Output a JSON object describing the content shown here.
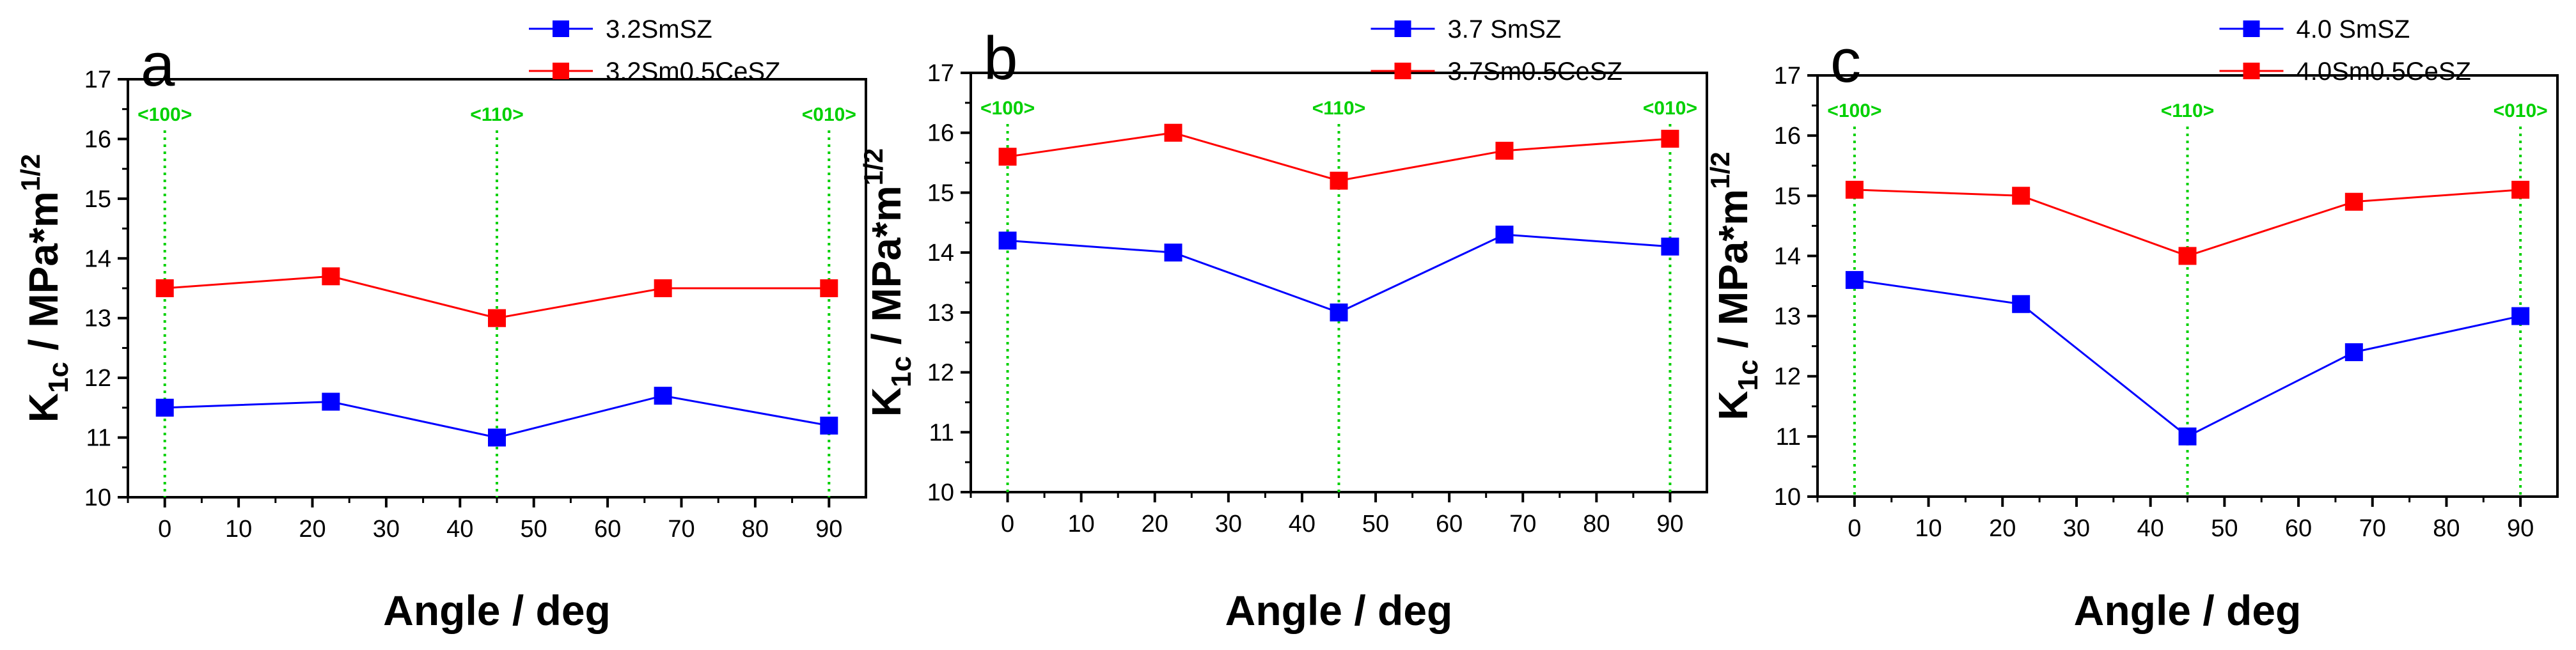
{
  "chart_data": [
    {
      "type": "line",
      "panel_label": "a",
      "x": [
        0,
        22.5,
        45,
        67.5,
        90
      ],
      "series": [
        {
          "name": "3.2SmSZ",
          "color": "#0000ff",
          "values": [
            11.5,
            11.6,
            11.0,
            11.7,
            11.2
          ]
        },
        {
          "name": "3.2Sm0.5CeSZ",
          "color": "#ff0000",
          "values": [
            13.5,
            13.7,
            13.0,
            13.5,
            13.5
          ]
        }
      ],
      "xlabel": "Angle / deg",
      "ylabel": {
        "main": "K",
        "sub": "1c",
        "mid": " / MPa*m",
        "sup": "1/2"
      },
      "xlim": [
        -5,
        95
      ],
      "ylim": [
        10,
        17
      ],
      "xticks": [
        0,
        10,
        20,
        30,
        40,
        50,
        60,
        70,
        80,
        90
      ],
      "yticks": [
        10,
        11,
        12,
        13,
        14,
        15,
        16,
        17
      ],
      "direction_lines": [
        {
          "x": 0,
          "label": "<100>"
        },
        {
          "x": 45,
          "label": "<110>"
        },
        {
          "x": 90,
          "label": "<010>"
        }
      ],
      "legend_position": "top-right"
    },
    {
      "type": "line",
      "panel_label": "b",
      "x": [
        0,
        22.5,
        45,
        67.5,
        90
      ],
      "series": [
        {
          "name": "3.7 SmSZ",
          "color": "#0000ff",
          "values": [
            14.2,
            14.0,
            13.0,
            14.3,
            14.1
          ]
        },
        {
          "name": "3.7Sm0.5CeSZ",
          "color": "#ff0000",
          "values": [
            15.6,
            16.0,
            15.2,
            15.7,
            15.9
          ]
        }
      ],
      "xlabel": "Angle / deg",
      "ylabel": {
        "main": "K",
        "sub": "1c",
        "mid": " / MPa*m",
        "sup": "1/2"
      },
      "xlim": [
        -5,
        95
      ],
      "ylim": [
        10,
        17
      ],
      "xticks": [
        0,
        10,
        20,
        30,
        40,
        50,
        60,
        70,
        80,
        90
      ],
      "yticks": [
        10,
        11,
        12,
        13,
        14,
        15,
        16,
        17
      ],
      "direction_lines": [
        {
          "x": 0,
          "label": "<100>"
        },
        {
          "x": 45,
          "label": "<110>"
        },
        {
          "x": 90,
          "label": "<010>"
        }
      ],
      "legend_position": "top-right"
    },
    {
      "type": "line",
      "panel_label": "c",
      "x": [
        0,
        22.5,
        45,
        67.5,
        90
      ],
      "series": [
        {
          "name": "4.0 SmSZ",
          "color": "#0000ff",
          "values": [
            13.6,
            13.2,
            11.0,
            12.4,
            13.0
          ]
        },
        {
          "name": "4.0Sm0.5CeSZ",
          "color": "#ff0000",
          "values": [
            15.1,
            15.0,
            14.0,
            14.9,
            15.1
          ]
        }
      ],
      "xlabel": "Angle / deg",
      "ylabel": {
        "main": "K",
        "sub": "1c",
        "mid": " / MPa*m",
        "sup": "1/2"
      },
      "xlim": [
        -5,
        95
      ],
      "ylim": [
        10,
        17
      ],
      "xticks": [
        0,
        10,
        20,
        30,
        40,
        50,
        60,
        70,
        80,
        90
      ],
      "yticks": [
        10,
        11,
        12,
        13,
        14,
        15,
        16,
        17
      ],
      "direction_lines": [
        {
          "x": 0,
          "label": "<100>"
        },
        {
          "x": 45,
          "label": "<110>"
        },
        {
          "x": 90,
          "label": "<010>"
        }
      ],
      "legend_position": "top-right"
    }
  ]
}
